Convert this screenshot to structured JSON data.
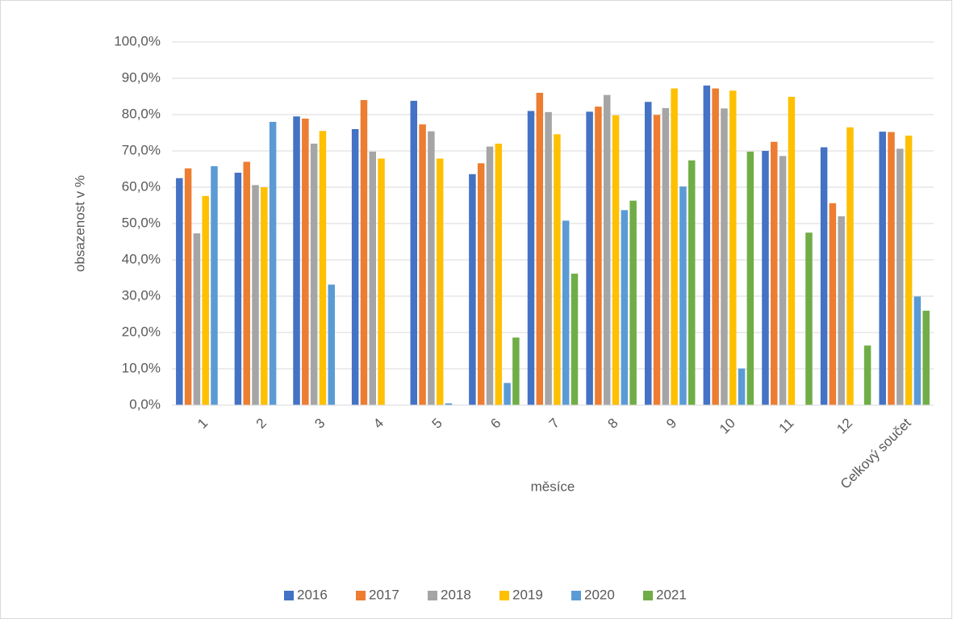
{
  "chart_data": {
    "type": "bar",
    "x_label": "měsíce",
    "y_label": "obsazenost v %",
    "categories": [
      "1",
      "2",
      "3",
      "4",
      "5",
      "6",
      "7",
      "8",
      "9",
      "10",
      "11",
      "12",
      "Celkový součet"
    ],
    "series": [
      {
        "name": "2016",
        "color": "#4472c4",
        "values": [
          62.5,
          64,
          79.5,
          76,
          83.8,
          63.6,
          81,
          80.8,
          83.5,
          88,
          70,
          71,
          75.3
        ]
      },
      {
        "name": "2017",
        "color": "#ed7d31",
        "values": [
          65.2,
          67,
          78.9,
          84,
          77.3,
          66.6,
          86,
          82.2,
          79.9,
          87.2,
          72.5,
          55.6,
          75.2
        ]
      },
      {
        "name": "2018",
        "color": "#a5a5a5",
        "values": [
          47.3,
          60.6,
          72,
          69.8,
          75.4,
          71.2,
          80.7,
          85.4,
          81.8,
          81.7,
          68.6,
          52,
          70.6
        ]
      },
      {
        "name": "2019",
        "color": "#ffc000",
        "values": [
          57.6,
          60,
          75.5,
          67.9,
          67.9,
          72,
          74.6,
          79.8,
          87.2,
          86.6,
          84.9,
          76.5,
          74.2
        ]
      },
      {
        "name": "2020",
        "color": "#5b9bd5",
        "values": [
          65.8,
          78,
          33.2,
          null,
          0.5,
          6.1,
          50.8,
          53.7,
          60.2,
          10.1,
          null,
          null,
          29.9
        ]
      },
      {
        "name": "2021",
        "color": "#70ad47",
        "values": [
          null,
          null,
          null,
          null,
          null,
          18.6,
          36.2,
          56.3,
          67.4,
          69.8,
          47.5,
          16.4,
          26
        ]
      }
    ],
    "ylim": [
      0,
      100
    ],
    "yticks": [
      {
        "value": 0,
        "label": "0,0%"
      },
      {
        "value": 10,
        "label": "10,0%"
      },
      {
        "value": 20,
        "label": "20,0%"
      },
      {
        "value": 30,
        "label": "30,0%"
      },
      {
        "value": 40,
        "label": "40,0%"
      },
      {
        "value": 50,
        "label": "50,0%"
      },
      {
        "value": 60,
        "label": "60,0%"
      },
      {
        "value": 70,
        "label": "70,0%"
      },
      {
        "value": 80,
        "label": "80,0%"
      },
      {
        "value": 90,
        "label": "90,0%"
      },
      {
        "value": 100,
        "label": "100,0%"
      }
    ],
    "grid": true,
    "legend": "bottom"
  }
}
